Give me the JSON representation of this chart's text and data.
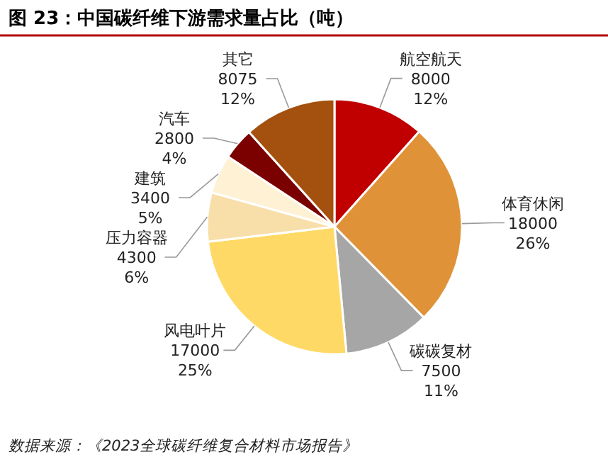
{
  "chart_data": {
    "type": "pie",
    "title": "图 23：中国碳纤维下游需求量占比（吨）",
    "categories": [
      "航空航天",
      "体育休闲",
      "碳碳复材",
      "风电叶片",
      "压力容器",
      "建筑",
      "汽车",
      "其它"
    ],
    "values": [
      8000,
      18000,
      7500,
      17000,
      4300,
      3400,
      2800,
      8075
    ],
    "value_labels": [
      "8000\n12%",
      "18000\n26%",
      "7500\n11%",
      "17000\n25%",
      "4300\n6%",
      "3400\n5%",
      "2800\n4%",
      "8075\n12%"
    ],
    "colors": [
      "#c00000",
      "#df9238",
      "#a6a6a6",
      "#ffd966",
      "#f8dfaa",
      "#fff1d4",
      "#7b0000",
      "#a4500f"
    ],
    "annotations": [
      "数据来源：《2023全球碳纤维复合材料市场报告》"
    ]
  }
}
